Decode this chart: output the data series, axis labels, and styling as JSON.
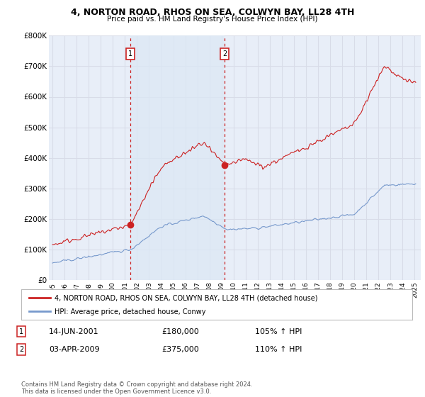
{
  "title": "4, NORTON ROAD, RHOS ON SEA, COLWYN BAY, LL28 4TH",
  "subtitle": "Price paid vs. HM Land Registry's House Price Index (HPI)",
  "ylim": [
    0,
    800000
  ],
  "yticks": [
    0,
    100000,
    200000,
    300000,
    400000,
    500000,
    600000,
    700000,
    800000
  ],
  "ytick_labels": [
    "£0",
    "£100K",
    "£200K",
    "£300K",
    "£400K",
    "£500K",
    "£600K",
    "£700K",
    "£800K"
  ],
  "xlim_left": 1994.7,
  "xlim_right": 2025.5,
  "xticks": [
    1995,
    1996,
    1997,
    1998,
    1999,
    2000,
    2001,
    2002,
    2003,
    2004,
    2005,
    2006,
    2007,
    2008,
    2009,
    2010,
    2011,
    2012,
    2013,
    2014,
    2015,
    2016,
    2017,
    2018,
    2019,
    2020,
    2021,
    2022,
    2023,
    2024,
    2025
  ],
  "fig_bg": "#ffffff",
  "plot_bg": "#e8eef8",
  "grid_color": "#d8dce8",
  "shade_color": "#dce8f5",
  "red_color": "#cc2222",
  "blue_color": "#7799cc",
  "vline_color": "#cc2222",
  "marker1_x": 2001.45,
  "marker2_x": 2009.25,
  "dot1_y": 180000,
  "dot2_y": 375000,
  "legend1": "4, NORTON ROAD, RHOS ON SEA, COLWYN BAY, LL28 4TH (detached house)",
  "legend2": "HPI: Average price, detached house, Conwy",
  "t1_num": "1",
  "t1_date": "14-JUN-2001",
  "t1_price": "£180,000",
  "t1_hpi": "105% ↑ HPI",
  "t2_num": "2",
  "t2_date": "03-APR-2009",
  "t2_price": "£375,000",
  "t2_hpi": "110% ↑ HPI",
  "footer": "Contains HM Land Registry data © Crown copyright and database right 2024.\nThis data is licensed under the Open Government Licence v3.0."
}
